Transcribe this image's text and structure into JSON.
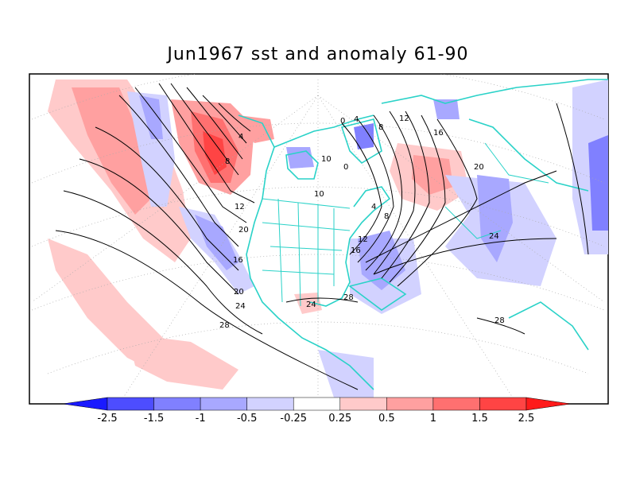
{
  "title": "Jun1967 sst and anomaly 61-90",
  "colorbar": {
    "bins": [
      {
        "color": "#1a1aff"
      },
      {
        "color": "#4d4dff"
      },
      {
        "color": "#8080ff"
      },
      {
        "color": "#a8a8ff"
      },
      {
        "color": "#d2d2ff"
      },
      {
        "color": "#ffffff"
      },
      {
        "color": "#ffcaca"
      },
      {
        "color": "#ffa0a0"
      },
      {
        "color": "#ff7070"
      },
      {
        "color": "#ff4444"
      },
      {
        "color": "#ff1a1a"
      }
    ],
    "labels": [
      "-2.5",
      "-1.5",
      "-1",
      "-0.5",
      "-0.25",
      "0.25",
      "0.5",
      "1",
      "1.5",
      "2.5"
    ]
  },
  "contour_labels": [
    "0",
    "4",
    "8",
    "12",
    "16",
    "20",
    "24",
    "28",
    "4",
    "8",
    "10",
    "12",
    "16",
    "20",
    "24",
    "28",
    "0",
    "4",
    "8",
    "10",
    "12",
    "16",
    "20",
    "24",
    "28"
  ],
  "colors": {
    "coast": "#2ad2c8",
    "contour": "#000000",
    "grid": "#999999"
  }
}
